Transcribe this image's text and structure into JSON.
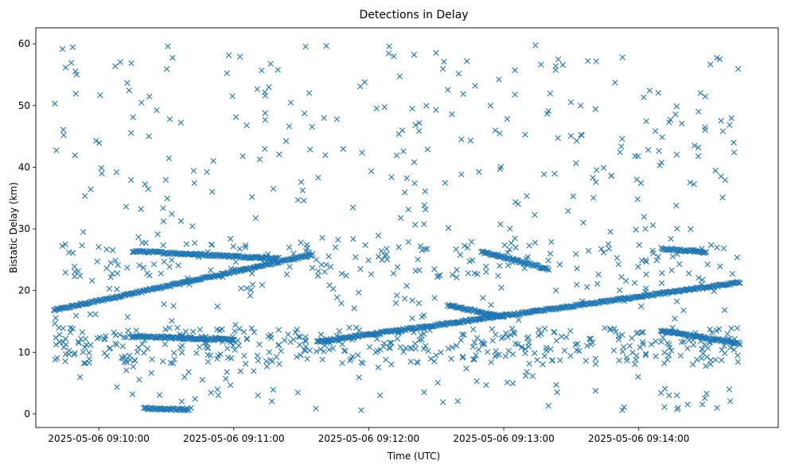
{
  "chart_data": {
    "type": "scatter",
    "title": "Detections in Delay",
    "xlabel": "Time (UTC)",
    "ylabel": "Bistatic Delay (km)",
    "x_start": "2025-05-06 09:09:40",
    "x_end": "2025-05-06 09:14:45",
    "xlim": [
      "2025-05-06 09:09:32",
      "2025-05-06 09:15:02"
    ],
    "ylim": [
      -2.2,
      62.6
    ],
    "x_ticks": [
      "2025-05-06 09:10:00",
      "2025-05-06 09:11:00",
      "2025-05-06 09:12:00",
      "2025-05-06 09:13:00",
      "2025-05-06 09:14:00"
    ],
    "y_ticks": [
      0,
      10,
      20,
      30,
      40,
      50,
      60
    ],
    "marker": "x",
    "grid": false,
    "legend": "none",
    "color": "#1f77b4",
    "series": [
      {
        "name": "",
        "tracks": [
          {
            "x": [
              "2025-05-06 09:09:40",
              "2025-05-06 09:11:35"
            ],
            "y": [
              16.8,
              25.8
            ]
          },
          {
            "x": [
              "2025-05-06 09:11:37",
              "2025-05-06 09:14:45"
            ],
            "y": [
              11.7,
              21.3
            ]
          },
          {
            "x": [
              "2025-05-06 09:10:15",
              "2025-05-06 09:11:20"
            ],
            "y": [
              26.4,
              25.2
            ]
          },
          {
            "x": [
              "2025-05-06 09:10:15",
              "2025-05-06 09:11:00"
            ],
            "y": [
              12.6,
              12.0
            ]
          },
          {
            "x": [
              "2025-05-06 09:12:35",
              "2025-05-06 09:13:00"
            ],
            "y": [
              17.6,
              15.7
            ]
          },
          {
            "x": [
              "2025-05-06 09:14:10",
              "2025-05-06 09:14:45"
            ],
            "y": [
              13.5,
              11.4
            ]
          },
          {
            "x": [
              "2025-05-06 09:14:10",
              "2025-05-06 09:14:30"
            ],
            "y": [
              26.8,
              26.2
            ]
          },
          {
            "x": [
              "2025-05-06 09:12:50",
              "2025-05-06 09:13:20"
            ],
            "y": [
              26.3,
              23.5
            ]
          },
          {
            "x": [
              "2025-05-06 09:10:20",
              "2025-05-06 09:10:40"
            ],
            "y": [
              0.9,
              0.7
            ]
          }
        ],
        "scatter_count": 1000,
        "scatter_range_y": [
          0.5,
          59.8
        ]
      }
    ]
  }
}
